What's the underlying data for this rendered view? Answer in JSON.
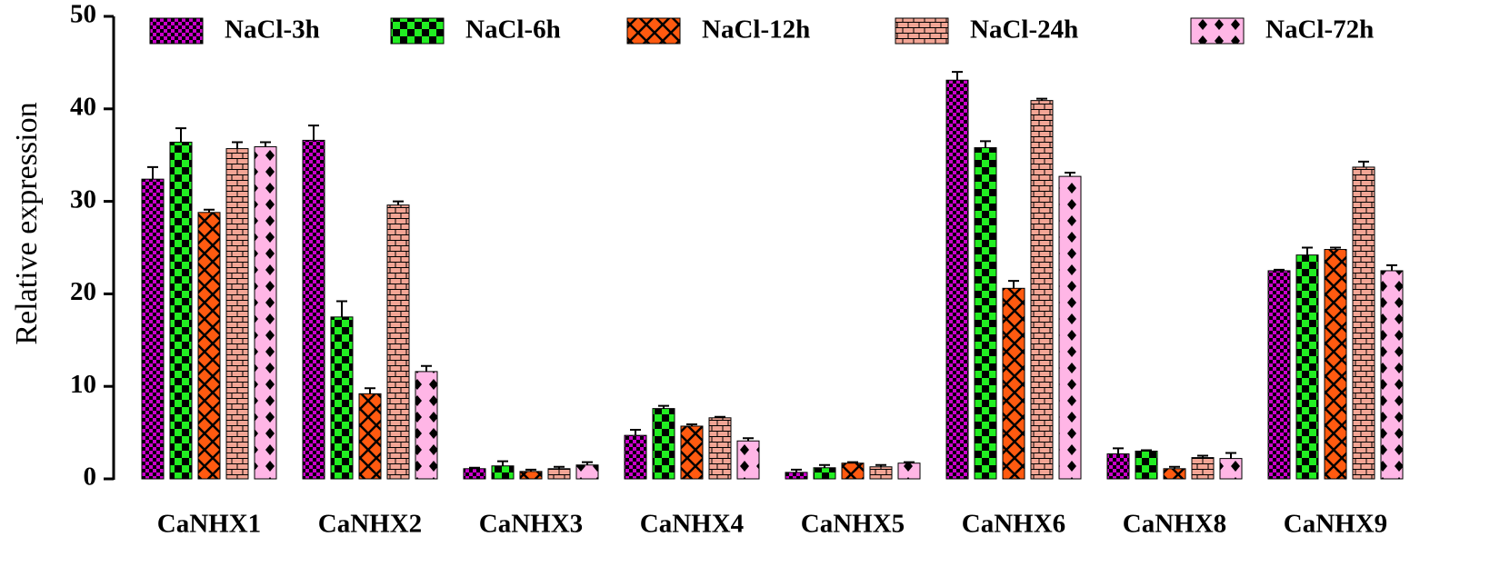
{
  "chart_data": {
    "type": "bar",
    "y_label": "Relative expression",
    "categories": [
      "CaNHX1",
      "CaNHX2",
      "CaNHX3",
      "CaNHX4",
      "CaNHX5",
      "CaNHX6",
      "CaNHX8",
      "CaNHX9"
    ],
    "series": [
      {
        "name": "NaCl-3h",
        "color": "#cc00cc",
        "values": [
          32.4,
          36.6,
          1.1,
          4.7,
          0.7,
          43.1,
          2.7,
          22.5
        ],
        "errors": [
          1.3,
          1.6,
          0.1,
          0.6,
          0.3,
          0.9,
          0.6,
          0.1
        ]
      },
      {
        "name": "NaCl-6h",
        "color": "#22ee22",
        "values": [
          36.4,
          17.5,
          1.4,
          7.6,
          1.2,
          35.8,
          3.0,
          24.2
        ],
        "errors": [
          1.5,
          1.7,
          0.5,
          0.3,
          0.3,
          0.7,
          0.1,
          0.8
        ]
      },
      {
        "name": "NaCl-12h",
        "color": "#ff5a10",
        "values": [
          28.8,
          9.2,
          0.8,
          5.7,
          1.7,
          20.6,
          1.1,
          24.8
        ],
        "errors": [
          0.3,
          0.6,
          0.2,
          0.2,
          0.1,
          0.8,
          0.2,
          0.2
        ]
      },
      {
        "name": "NaCl-24h",
        "color": "#f2a595",
        "values": [
          35.7,
          29.6,
          1.1,
          6.6,
          1.3,
          40.9,
          2.3,
          33.7
        ],
        "errors": [
          0.7,
          0.4,
          0.2,
          0.1,
          0.2,
          0.2,
          0.2,
          0.6
        ]
      },
      {
        "name": "NaCl-72h",
        "color": "#ffb6e6",
        "values": [
          35.9,
          11.6,
          1.5,
          4.1,
          1.7,
          32.7,
          2.2,
          22.5
        ],
        "errors": [
          0.5,
          0.6,
          0.3,
          0.3,
          0.1,
          0.4,
          0.6,
          0.6
        ]
      }
    ],
    "ylim": [
      0,
      50
    ],
    "yticks": [
      0,
      10,
      20,
      30,
      40,
      50
    ]
  }
}
